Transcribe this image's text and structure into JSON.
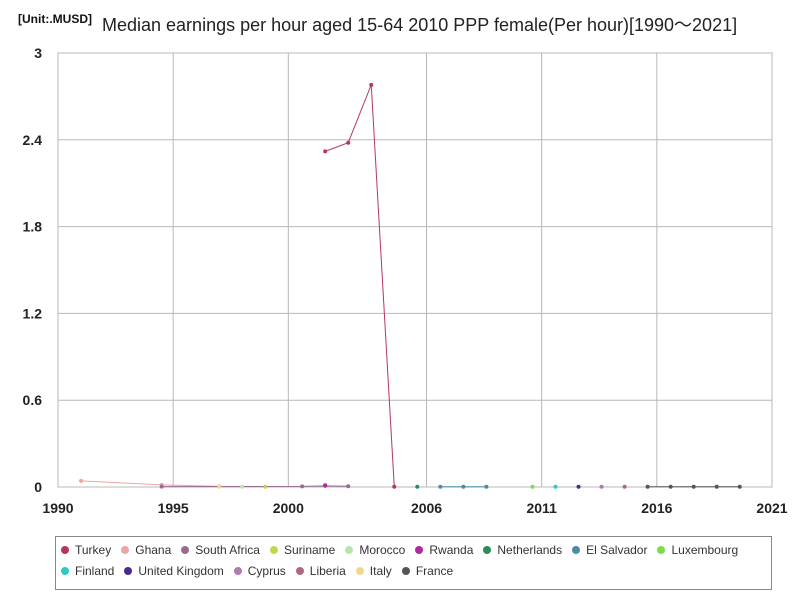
{
  "unit_label": "[Unit:.MUSD]",
  "chart_data": {
    "type": "line",
    "title": "Median earnings per hour aged 15-64 2010 PPP female(Per hour)[1990～2021]",
    "xlabel": "",
    "ylabel": "",
    "xlim": [
      1990,
      2021
    ],
    "ylim": [
      0,
      3
    ],
    "x_ticks": [
      "1990",
      "1995",
      "2000",
      "2006",
      "2011",
      "2016",
      "2021"
    ],
    "y_ticks": [
      "0",
      "0.6",
      "1.2",
      "1.8",
      "2.4",
      "3"
    ],
    "grid": true,
    "legend_position": "bottom",
    "series": [
      {
        "name": "Turkey",
        "color": "#b5385a",
        "points": [
          [
            2001.6,
            2.32
          ],
          [
            2002.6,
            2.38
          ],
          [
            2003.6,
            2.78
          ],
          [
            2004.6,
            0.002
          ]
        ]
      },
      {
        "name": "Ghana",
        "color": "#e8a6a6",
        "points": [
          [
            1991.0,
            0.042
          ],
          [
            1994.5,
            0.015
          ],
          [
            1997.0,
            0.004
          ]
        ]
      },
      {
        "name": "South Africa",
        "color": "#9a6b90",
        "points": [
          [
            1994.5,
            0.003
          ],
          [
            2000.6,
            0.004
          ],
          [
            2001.6,
            0.008
          ],
          [
            2002.6,
            0.005
          ]
        ]
      },
      {
        "name": "Suriname",
        "color": "#c3d64a",
        "points": [
          [
            1999.0,
            0.002
          ]
        ]
      },
      {
        "name": "Morocco",
        "color": "#b5e6a8",
        "points": [
          [
            1998.0,
            0.002
          ]
        ]
      },
      {
        "name": "Rwanda",
        "color": "#b02a9a",
        "points": [
          [
            2001.6,
            0.012
          ]
        ]
      },
      {
        "name": "Netherlands",
        "color": "#2e8b57",
        "points": [
          [
            2005.6,
            0.002
          ]
        ]
      },
      {
        "name": "El Salvador",
        "color": "#4d8aa8",
        "points": [
          [
            2006.6,
            0.002
          ],
          [
            2007.6,
            0.002
          ],
          [
            2008.6,
            0.002
          ]
        ]
      },
      {
        "name": "Luxembourg",
        "color": "#7bdc4e",
        "points": [
          [
            2010.6,
            0.002
          ]
        ]
      },
      {
        "name": "Finland",
        "color": "#2ec8c8",
        "points": [
          [
            2011.6,
            0.002
          ]
        ]
      },
      {
        "name": "United Kingdom",
        "color": "#4b2a8f",
        "points": [
          [
            2012.6,
            0.002
          ]
        ]
      },
      {
        "name": "Cyprus",
        "color": "#b07cae",
        "points": [
          [
            2013.6,
            0.002
          ]
        ]
      },
      {
        "name": "Liberia",
        "color": "#a86b7e",
        "points": [
          [
            2014.6,
            0.002
          ]
        ]
      },
      {
        "name": "Italy",
        "color": "#f0d890",
        "points": [
          [
            1997.0,
            0.002
          ]
        ]
      },
      {
        "name": "France",
        "color": "#555555",
        "points": [
          [
            2015.6,
            0.002
          ],
          [
            2016.6,
            0.002
          ],
          [
            2017.6,
            0.002
          ],
          [
            2018.6,
            0.002
          ],
          [
            2019.6,
            0.002
          ]
        ]
      }
    ]
  }
}
